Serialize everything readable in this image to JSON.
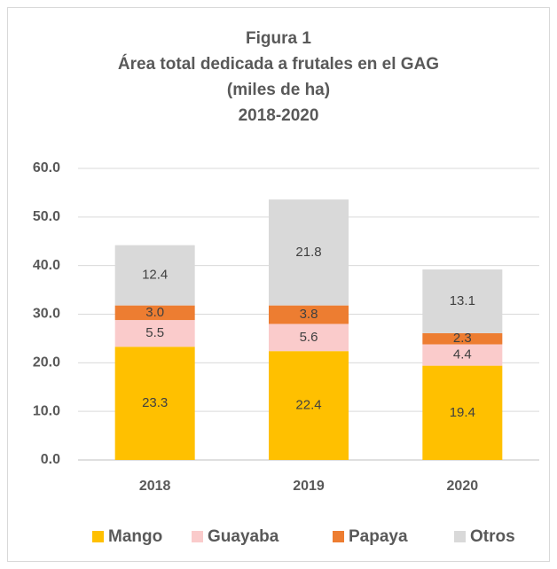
{
  "chart_data": {
    "type": "stacked_bar",
    "title": [
      "Figura 1",
      "Área total dedicada a frutales en el GAG",
      "(miles de ha)",
      "2018-2020"
    ],
    "categories": [
      "2018",
      "2019",
      "2020"
    ],
    "series": [
      {
        "name": "Mango",
        "color": "#FFC000",
        "values": [
          23.3,
          22.4,
          19.4
        ],
        "value_labels": [
          "23.3",
          "22.4",
          "19.4"
        ]
      },
      {
        "name": "Guayaba",
        "color": "#FACBCB",
        "values": [
          5.5,
          5.6,
          4.4
        ],
        "value_labels": [
          "5.5",
          "5.6",
          "4.4"
        ]
      },
      {
        "name": "Papaya",
        "color": "#ED7D31",
        "values": [
          3.0,
          3.8,
          2.3
        ],
        "value_labels": [
          "3.0",
          "3.8",
          "2.3"
        ]
      },
      {
        "name": "Otros",
        "color": "#D9D9D9",
        "values": [
          12.4,
          21.8,
          13.1
        ],
        "value_labels": [
          "12.4",
          "21.8",
          "13.1"
        ]
      }
    ],
    "ylim": [
      0,
      60
    ],
    "yticks": [
      {
        "value": 0,
        "label": "0.0"
      },
      {
        "value": 10,
        "label": "10.0"
      },
      {
        "value": 20,
        "label": "20.0"
      },
      {
        "value": 30,
        "label": "30.0"
      },
      {
        "value": 40,
        "label": "40.0"
      },
      {
        "value": 50,
        "label": "50.0"
      },
      {
        "value": 60,
        "label": "60.0"
      }
    ],
    "grid": true,
    "legend": "bottom"
  }
}
